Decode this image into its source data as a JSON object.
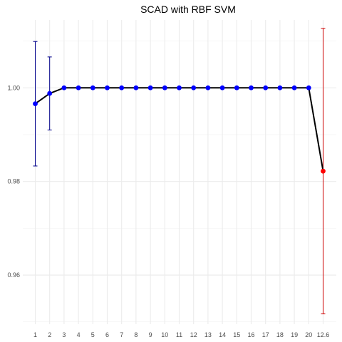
{
  "chart_data": {
    "type": "line",
    "title": "SCAD with RBF SVM",
    "xlabel": "",
    "ylabel": "",
    "categories": [
      "1",
      "2",
      "3",
      "4",
      "5",
      "6",
      "7",
      "8",
      "9",
      "10",
      "11",
      "12",
      "13",
      "14",
      "15",
      "16",
      "17",
      "18",
      "19",
      "20",
      "12.6"
    ],
    "values": [
      0.9966,
      0.9988,
      1.0,
      1.0,
      1.0,
      1.0,
      1.0,
      1.0,
      1.0,
      1.0,
      1.0,
      1.0,
      1.0,
      1.0,
      1.0,
      1.0,
      1.0,
      1.0,
      1.0,
      1.0,
      0.9822
    ],
    "error_low": [
      0.9833,
      0.991,
      1.0,
      1.0,
      1.0,
      1.0,
      1.0,
      1.0,
      1.0,
      1.0,
      1.0,
      1.0,
      1.0,
      1.0,
      1.0,
      1.0,
      1.0,
      1.0,
      1.0,
      1.0,
      0.9517
    ],
    "error_high": [
      1.0099,
      1.0066,
      1.0,
      1.0,
      1.0,
      1.0,
      1.0,
      1.0,
      1.0,
      1.0,
      1.0,
      1.0,
      1.0,
      1.0,
      1.0,
      1.0,
      1.0,
      1.0,
      1.0,
      1.0,
      1.0127
    ],
    "point_colors": [
      "#0000ff",
      "#0000ff",
      "#0000ff",
      "#0000ff",
      "#0000ff",
      "#0000ff",
      "#0000ff",
      "#0000ff",
      "#0000ff",
      "#0000ff",
      "#0000ff",
      "#0000ff",
      "#0000ff",
      "#0000ff",
      "#0000ff",
      "#0000ff",
      "#0000ff",
      "#0000ff",
      "#0000ff",
      "#0000ff",
      "#ff0000"
    ],
    "error_colors": [
      "#00008b",
      "#00008b",
      "#00008b",
      "#00008b",
      "#00008b",
      "#00008b",
      "#00008b",
      "#00008b",
      "#00008b",
      "#00008b",
      "#00008b",
      "#00008b",
      "#00008b",
      "#00008b",
      "#00008b",
      "#00008b",
      "#00008b",
      "#00008b",
      "#00008b",
      "#00008b",
      "#cd0000"
    ],
    "line_color": "#000000",
    "ylim": [
      0.9495,
      1.0145
    ],
    "y_ticks": [
      "0.96",
      "0.98",
      "1.00"
    ],
    "y_tick_values": [
      0.96,
      0.98,
      1.0
    ],
    "grid": true,
    "legend": "none"
  }
}
